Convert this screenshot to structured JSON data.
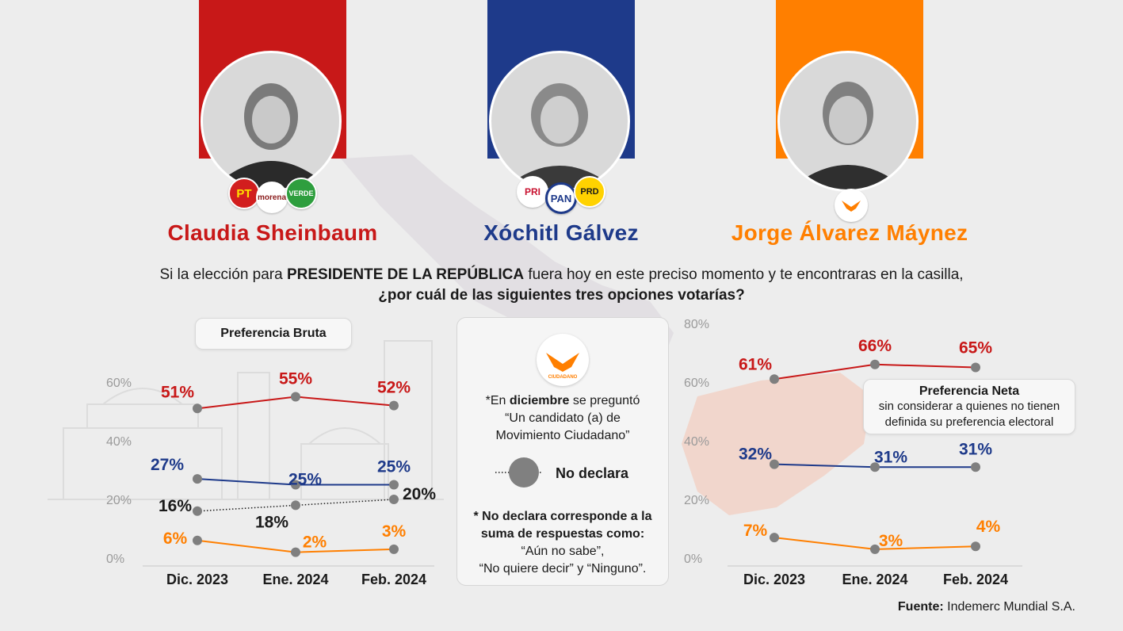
{
  "colors": {
    "morena": "#c81818",
    "pan": "#1e3a8a",
    "mc": "#ff7f00",
    "no_declara": "#1a1a1a",
    "background": "#ededed"
  },
  "candidates": [
    {
      "name": "Claudia Sheinbaum",
      "color": "#c81818",
      "parties": [
        "PT",
        "morena",
        "VERDE"
      ],
      "photo_icon": "candidate-portrait-icon"
    },
    {
      "name": "Xóchitl Gálvez",
      "color": "#1e3a8a",
      "parties": [
        "PRI",
        "PAN",
        "PRD"
      ],
      "photo_icon": "candidate-portrait-icon"
    },
    {
      "name": "Jorge Álvarez Máynez",
      "color": "#ff7f00",
      "parties": [
        "MOVIMIENTO CIUDADANO"
      ],
      "photo_icon": "candidate-portrait-icon"
    }
  ],
  "question": {
    "part1": "Si la elección para ",
    "bold": "PRESIDENTE DE LA REPÚBLICA",
    "part2": " fuera hoy en este preciso momento y te encontraras en la casilla,",
    "line2": "¿por cuál de las siguientes tres opciones votarías?"
  },
  "center_box": {
    "logo_text": "MOVIMIENTO CIUDADANO",
    "note_pre": "*En ",
    "note_bold": "diciembre",
    "note_post": " se preguntó",
    "note_line2": "“Un candidato (a) de",
    "note_line3": "Movimiento Ciudadano”",
    "legend_label": "No declara",
    "foot_bold1": "* No declara corresponde a la",
    "foot_bold2": "suma de respuestas como:",
    "foot_line3": "“Aún no sabe”,",
    "foot_line4": "“No quiere decir” y “Ninguno”."
  },
  "source": {
    "label": "Fuente:",
    "value": "Indemerc Mundial S.A."
  },
  "chart_data": [
    {
      "type": "line",
      "title": "Preferencia Bruta",
      "categories": [
        "Dic. 2023",
        "Ene. 2024",
        "Feb. 2024"
      ],
      "ylim": [
        0,
        60
      ],
      "yticks": [
        "0%",
        "20%",
        "40%",
        "60%"
      ],
      "series": [
        {
          "key": "sheinbaum",
          "color": "#c81818",
          "values": [
            51,
            55,
            52
          ],
          "labels": [
            "51%",
            "55%",
            "52%"
          ]
        },
        {
          "key": "galvez",
          "color": "#1e3a8a",
          "values": [
            27,
            25,
            25
          ],
          "labels": [
            "27%",
            "25%",
            "25%"
          ]
        },
        {
          "key": "no_declara",
          "color": "#1a1a1a",
          "dotted": true,
          "values": [
            16,
            18,
            20
          ],
          "labels": [
            "16%",
            "18%",
            "20%"
          ]
        },
        {
          "key": "maynez",
          "color": "#ff7f00",
          "values": [
            6,
            2,
            3
          ],
          "labels": [
            "6%",
            "2%",
            "3%"
          ]
        }
      ]
    },
    {
      "type": "line",
      "title": "Preferencia Neta",
      "subtitle": "sin considerar a quienes no tienen definida su preferencia electoral",
      "categories": [
        "Dic. 2023",
        "Ene. 2024",
        "Feb. 2024"
      ],
      "ylim": [
        0,
        80
      ],
      "yticks": [
        "0%",
        "20%",
        "40%",
        "60%",
        "80%"
      ],
      "series": [
        {
          "key": "sheinbaum",
          "color": "#c81818",
          "values": [
            61,
            66,
            65
          ],
          "labels": [
            "61%",
            "66%",
            "65%"
          ]
        },
        {
          "key": "galvez",
          "color": "#1e3a8a",
          "values": [
            32,
            31,
            31
          ],
          "labels": [
            "32%",
            "31%",
            "31%"
          ]
        },
        {
          "key": "maynez",
          "color": "#ff7f00",
          "values": [
            7,
            3,
            4
          ],
          "labels": [
            "7%",
            "3%",
            "4%"
          ]
        }
      ]
    }
  ]
}
